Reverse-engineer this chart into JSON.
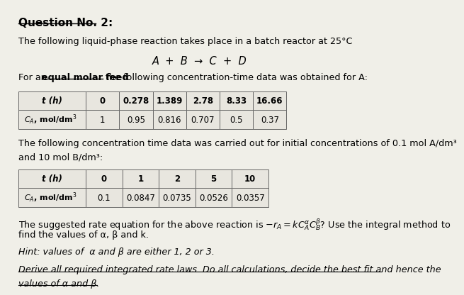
{
  "title": "Question No. 2:",
  "line1": "The following liquid-phase reaction takes place in a batch reactor at 25°C",
  "reaction": "A  +  B  →  C  +  D",
  "line2_part1": "For an ",
  "line2_bold_underline": "equal molar feed",
  "line2_part2": " the following concentration-time data was obtained for A:",
  "table1_headers": [
    "t (h)",
    "0",
    "0.278",
    "1.389",
    "2.78",
    "8.33",
    "16.66"
  ],
  "table1_row2_label": "CA, mol/dm3",
  "table1_row2_vals": [
    "1",
    "0.95",
    "0.816",
    "0.707",
    "0.5",
    "0.37"
  ],
  "line3": "The following concentration time data was carried out for initial concentrations of 0.1 mol A/dm³",
  "line4": "and 10 mol B/dm³:",
  "table2_headers": [
    "t (h)",
    "0",
    "1",
    "2",
    "5",
    "10"
  ],
  "table2_row2_label": "CA, mol/dm3",
  "table2_row2_vals": [
    "0.1",
    "0.0847",
    "0.0735",
    "0.0526",
    "0.0357"
  ],
  "line5a": "The suggested rate equation for the above reaction is −r",
  "line5b": "find the values of α, β and k.",
  "line6": "Hint: values of  α and β are either 1, 2 or 3.",
  "line7": "Derive all required integrated rate laws. Do all calculations, decide the best fit and hence the",
  "line8": "values of α and β.",
  "bg_color": "#f0efe8",
  "table_bg": "#e8e6df",
  "table_border": "#666666"
}
